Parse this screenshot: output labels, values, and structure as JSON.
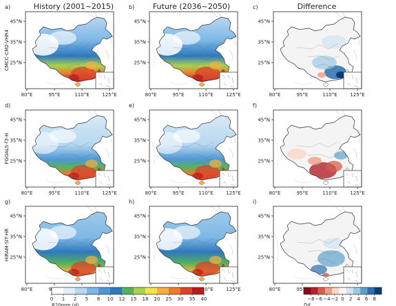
{
  "columns": [
    {
      "label": "History (2001~2015)"
    },
    {
      "label": "Future (2036~2050)"
    },
    {
      "label": "Difference"
    }
  ],
  "rows": [
    {
      "model": "CMCC-CM2-VHR4",
      "panels": [
        "a)",
        "b)",
        "c)"
      ]
    },
    {
      "model": "FGOALS-f3-H",
      "panels": [
        "d)",
        "e)",
        "f)"
      ]
    },
    {
      "model": "HiRAM-SIT-HR",
      "panels": [
        "g)",
        "h)",
        "i)"
      ]
    }
  ],
  "lat_ticks": [
    "45°N",
    "35°N",
    "25°N"
  ],
  "lon_ticks": [
    "80°E",
    "95°E",
    "110°E",
    "125°E"
  ],
  "colorbar_abs": {
    "label": "R20mm (d)",
    "ticks": [
      "0",
      "1",
      "2",
      "5",
      "8",
      "10",
      "12",
      "15",
      "18",
      "20",
      "25",
      "30",
      "35",
      "40"
    ],
    "colors": [
      "#ffffff",
      "#e0eef9",
      "#b7d7f1",
      "#7fb8e6",
      "#4d97d5",
      "#2e79be",
      "#56b35b",
      "#a8d24e",
      "#f5e14a",
      "#f4b13f",
      "#ea7b2f",
      "#d9432a",
      "#b71c1c"
    ]
  },
  "colorbar_dif": {
    "label": "Dif.",
    "ticks": [
      "−8",
      "−6",
      "−4",
      "−2",
      "0",
      "2",
      "4",
      "6",
      "8"
    ],
    "colors": [
      "#7f0e14",
      "#b2232b",
      "#d75e4c",
      "#ef9f86",
      "#fad7c8",
      "#f7f7f7",
      "#d4e6f2",
      "#9ec9e2",
      "#5fa1cd",
      "#2c6fae",
      "#0b3c78"
    ]
  }
}
